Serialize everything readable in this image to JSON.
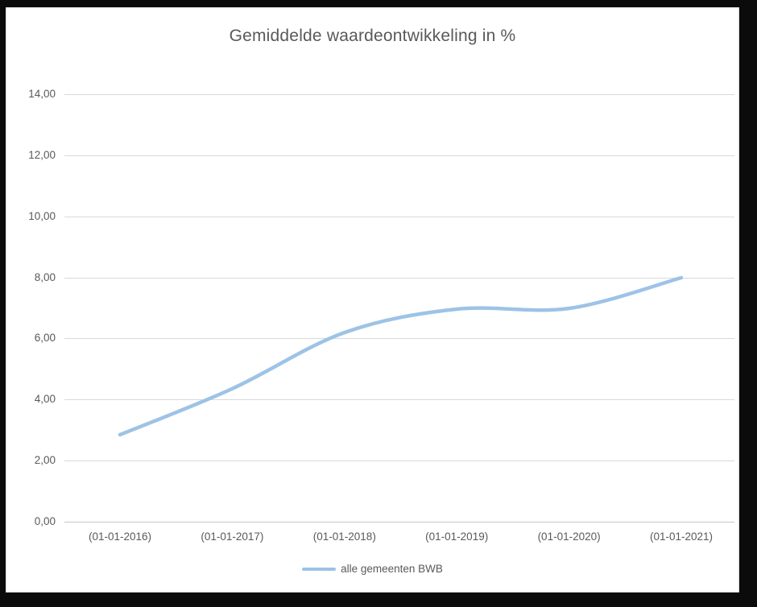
{
  "frame": {
    "border_color": "#0b0b0b",
    "background": "#ffffff"
  },
  "chart_data": {
    "type": "line",
    "title": "Gemiddelde waardeontwikkeling in %",
    "categories": [
      "(01-01-2016)",
      "(01-01-2017)",
      "(01-01-2018)",
      "(01-01-2019)",
      "(01-01-2020)",
      "(01-01-2021)"
    ],
    "series": [
      {
        "name": "alle gemeenten BWB",
        "values": [
          2.85,
          4.35,
          6.2,
          6.95,
          7.0,
          8.0
        ],
        "color": "#9DC3E6",
        "smooth": true,
        "stroke_width": 4.5
      }
    ],
    "xlabel": "",
    "ylabel": "",
    "ylim": [
      0,
      14
    ],
    "ytick_step": 2,
    "ytick_labels": [
      "0,00",
      "2,00",
      "4,00",
      "6,00",
      "8,00",
      "10,00",
      "12,00",
      "14,00"
    ],
    "grid": true,
    "legend_position": "bottom",
    "text_color": "#595959",
    "gridline_color": "#D9D9D9"
  }
}
